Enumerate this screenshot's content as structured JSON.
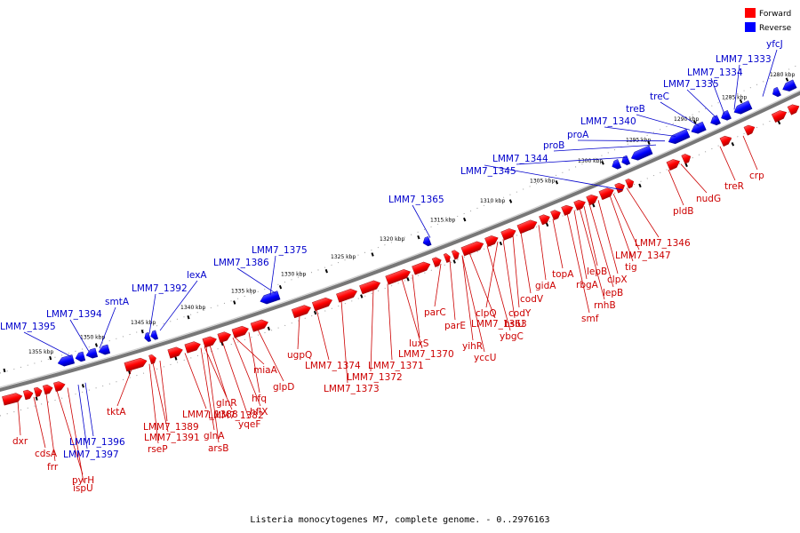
{
  "caption": "Listeria monocytogenes M7, complete genome. - 0..2976163",
  "legend": [
    {
      "label": "Forward",
      "color": "#ff0000"
    },
    {
      "label": "Reverse",
      "color": "#0000ff"
    }
  ],
  "colors": {
    "forward": "#ff0000",
    "reverse": "#0000ff",
    "backbone": "#888888"
  },
  "ruler_ticks": [
    "1280 kbp",
    "1285 kbp",
    "1290 kbp",
    "1295 kbp",
    "1300 kbp",
    "1305 kbp",
    "1310 kbp",
    "1315 kbp",
    "1320 kbp",
    "1325 kbp",
    "1330 kbp",
    "1335 kbp",
    "1340 kbp",
    "1345 kbp",
    "1350 kbp",
    "1355 kbp"
  ],
  "forward_labels": [
    "crp",
    "treR",
    "nudG",
    "pldB",
    "LMM7_1346",
    "LMM7_1347",
    "tig",
    "clpX",
    "lepB",
    "lepB",
    "rbgA",
    "rnhB",
    "smf",
    "topA",
    "gidA",
    "codV",
    "codY",
    "clpQ",
    "hslU",
    "ybgC",
    "LMM7_1363",
    "yihR",
    "yccU",
    "parE",
    "parC",
    "luxS",
    "LMM7_1370",
    "LMM7_1371",
    "LMM7_1372",
    "LMM7_1373",
    "LMM7_1374",
    "ugpQ",
    "glpD",
    "hfq",
    "miaA",
    "hflX",
    "yqeF",
    "glnR",
    "LMM7_1382",
    "glnA",
    "arsB",
    "LMM7_1388",
    "LMM7_1389",
    "LMM7_1391",
    "tktA",
    "rseP",
    "dxr",
    "cdsA",
    "frr",
    "pyrH",
    "ispU"
  ],
  "reverse_labels": [
    "yfcJ",
    "LMM7_1333",
    "LMM7_1334",
    "LMM7_1335",
    "treC",
    "treB",
    "LMM7_1340",
    "proA",
    "proB",
    "LMM7_1344",
    "LMM7_1345",
    "LMM7_1365",
    "LMM7_1375",
    "LMM7_1386",
    "lexA",
    "LMM7_1392",
    "smtA",
    "LMM7_1394",
    "LMM7_1395",
    "LMM7_1396",
    "LMM7_1397"
  ]
}
